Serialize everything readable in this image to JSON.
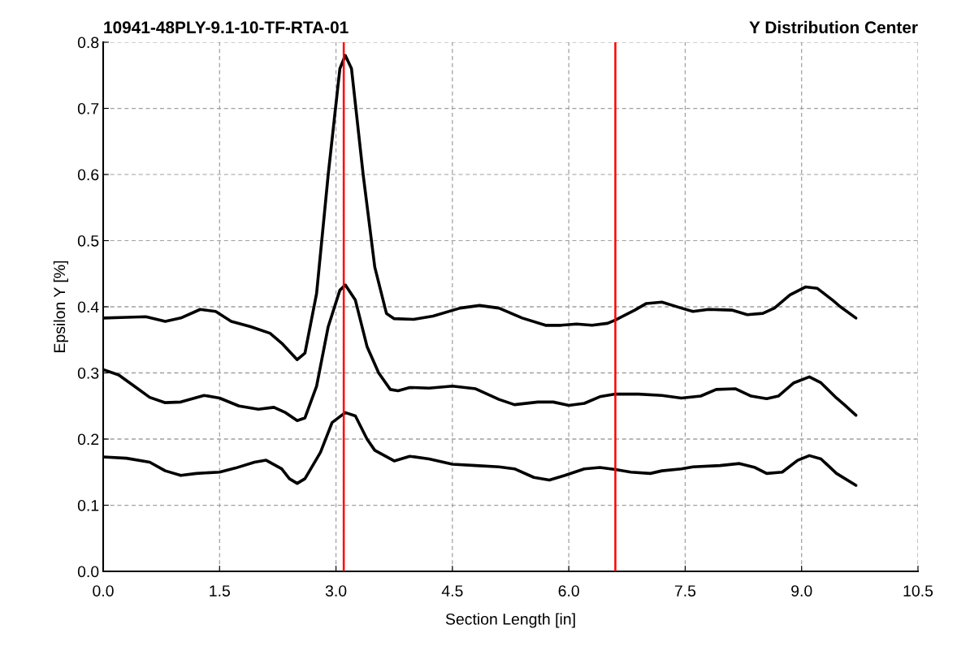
{
  "chart_data": {
    "type": "line",
    "title": "10941-48PLY-9.1-10-TF-RTA-01",
    "subtitle": "Y Distribution Center",
    "xlabel": "Section Length [in]",
    "ylabel": "Epsilon Y [%]",
    "series": [
      {
        "color": "#000000",
        "x": [
          0,
          0.3,
          0.55,
          0.8,
          1.0,
          1.25,
          1.45,
          1.65,
          1.9,
          2.15,
          2.3,
          2.5,
          2.6,
          2.75,
          2.9,
          3.05,
          3.12,
          3.2,
          3.35,
          3.5,
          3.65,
          3.75,
          4.0,
          4.25,
          4.6,
          4.85,
          5.1,
          5.4,
          5.7,
          5.9,
          6.1,
          6.3,
          6.5,
          6.6,
          6.85,
          7.0,
          7.2,
          7.45,
          7.6,
          7.8,
          8.1,
          8.3,
          8.5,
          8.65,
          8.85,
          9.05,
          9.2,
          9.4,
          9.5,
          9.7
        ],
        "values": [
          0.383,
          0.384,
          0.385,
          0.378,
          0.383,
          0.396,
          0.393,
          0.378,
          0.37,
          0.36,
          0.345,
          0.32,
          0.33,
          0.42,
          0.6,
          0.76,
          0.78,
          0.76,
          0.6,
          0.46,
          0.39,
          0.382,
          0.381,
          0.386,
          0.398,
          0.402,
          0.398,
          0.383,
          0.372,
          0.372,
          0.374,
          0.372,
          0.375,
          0.38,
          0.395,
          0.405,
          0.407,
          0.398,
          0.393,
          0.396,
          0.395,
          0.388,
          0.39,
          0.398,
          0.418,
          0.43,
          0.428,
          0.41,
          0.4,
          0.383
        ]
      },
      {
        "color": "#000000",
        "x": [
          0,
          0.2,
          0.4,
          0.6,
          0.8,
          1.0,
          1.3,
          1.5,
          1.75,
          2.0,
          2.2,
          2.35,
          2.5,
          2.6,
          2.75,
          2.9,
          3.05,
          3.12,
          3.25,
          3.4,
          3.55,
          3.7,
          3.8,
          3.95,
          4.2,
          4.5,
          4.8,
          5.1,
          5.3,
          5.6,
          5.8,
          6.0,
          6.2,
          6.4,
          6.6,
          6.9,
          7.2,
          7.45,
          7.7,
          7.9,
          8.15,
          8.35,
          8.55,
          8.7,
          8.9,
          9.1,
          9.25,
          9.45,
          9.55,
          9.7
        ],
        "values": [
          0.305,
          0.297,
          0.28,
          0.263,
          0.255,
          0.256,
          0.266,
          0.262,
          0.25,
          0.245,
          0.248,
          0.24,
          0.228,
          0.232,
          0.28,
          0.37,
          0.425,
          0.433,
          0.41,
          0.34,
          0.3,
          0.275,
          0.273,
          0.278,
          0.277,
          0.28,
          0.276,
          0.26,
          0.252,
          0.256,
          0.256,
          0.251,
          0.254,
          0.264,
          0.268,
          0.268,
          0.266,
          0.262,
          0.265,
          0.275,
          0.276,
          0.265,
          0.261,
          0.265,
          0.285,
          0.294,
          0.285,
          0.262,
          0.252,
          0.236
        ]
      },
      {
        "color": "#000000",
        "x": [
          0,
          0.3,
          0.6,
          0.8,
          1.0,
          1.2,
          1.5,
          1.7,
          1.95,
          2.1,
          2.3,
          2.4,
          2.5,
          2.6,
          2.8,
          2.95,
          3.12,
          3.25,
          3.4,
          3.5,
          3.75,
          3.95,
          4.2,
          4.5,
          4.8,
          5.1,
          5.3,
          5.55,
          5.75,
          5.95,
          6.2,
          6.4,
          6.6,
          6.8,
          7.05,
          7.2,
          7.45,
          7.6,
          7.95,
          8.2,
          8.4,
          8.55,
          8.75,
          8.95,
          9.1,
          9.25,
          9.45,
          9.7
        ],
        "values": [
          0.173,
          0.171,
          0.165,
          0.152,
          0.145,
          0.148,
          0.15,
          0.156,
          0.165,
          0.168,
          0.155,
          0.14,
          0.133,
          0.14,
          0.18,
          0.225,
          0.24,
          0.235,
          0.2,
          0.183,
          0.167,
          0.174,
          0.17,
          0.162,
          0.16,
          0.158,
          0.155,
          0.142,
          0.138,
          0.145,
          0.155,
          0.157,
          0.154,
          0.15,
          0.148,
          0.152,
          0.155,
          0.158,
          0.16,
          0.163,
          0.157,
          0.148,
          0.15,
          0.168,
          0.175,
          0.17,
          0.148,
          0.13
        ]
      }
    ],
    "ref_lines": [
      {
        "axis": "x",
        "value": 3.1,
        "color": "#ff0000"
      },
      {
        "axis": "x",
        "value": 6.6,
        "color": "#ff0000"
      }
    ],
    "xlim": [
      0,
      10.5
    ],
    "xticks": [
      {
        "value": 0,
        "label": "0.0"
      },
      1.5,
      {
        "value": 3,
        "label": "3.0"
      },
      4.5,
      {
        "value": 6,
        "label": "6.0"
      },
      7.5,
      {
        "value": 9,
        "label": "9.0"
      },
      10.5
    ],
    "ylim": [
      0,
      0.8
    ],
    "yticks": [
      {
        "value": 0,
        "label": "0.0"
      },
      0.1,
      0.2,
      0.3,
      0.4,
      0.5,
      0.6,
      0.7,
      0.8
    ],
    "grid": true,
    "line_style": "solid",
    "marker": "none"
  }
}
